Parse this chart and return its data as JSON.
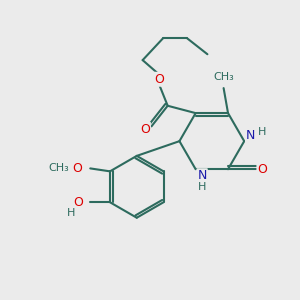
{
  "bg_color": "#ebebeb",
  "bond_color": "#2d6b5e",
  "bond_width": 1.5,
  "atom_colors": {
    "O": "#dd0000",
    "N": "#1a1aaa",
    "C": "#2d6b5e",
    "H": "#2d6b5e"
  }
}
